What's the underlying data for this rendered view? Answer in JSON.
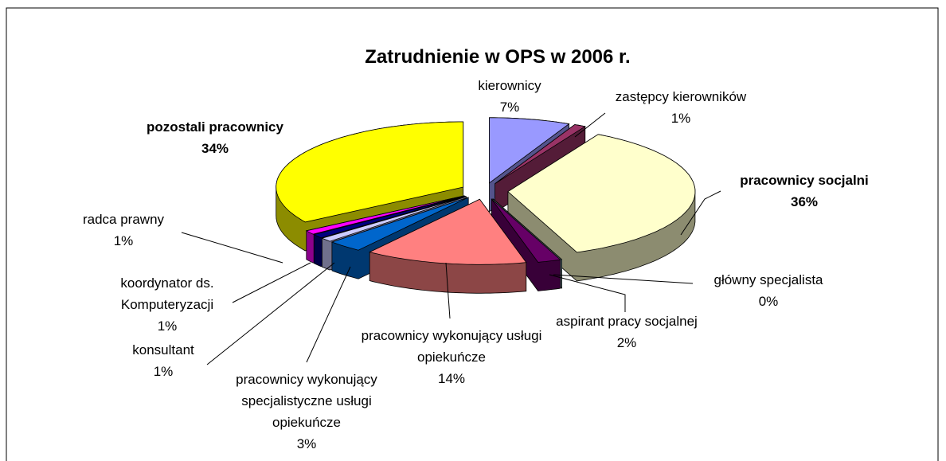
{
  "chart_data": {
    "type": "pie",
    "title": "Zatrudnienie w OPS w 2006 r.",
    "categories": [
      "kierownicy",
      "zastępcy kierowników",
      "pracownicy socjalni",
      "główny specjalista",
      "aspirant pracy socjalnej",
      "pracownicy wykonujący usługi opiekuńcze",
      "pracownicy wykonujący specjalistyczne usługi opiekuńcze",
      "konsultant",
      "koordynator ds. Komputeryzacji",
      "radca prawny",
      "pozostali pracownicy"
    ],
    "values": [
      7,
      1,
      36,
      0,
      2,
      14,
      3,
      1,
      1,
      1,
      34
    ],
    "value_labels": [
      "7%",
      "1%",
      "36%",
      "0%",
      "2%",
      "14%",
      "3%",
      "1%",
      "1%",
      "1%",
      "34%"
    ],
    "colors": [
      "#9999ff",
      "#993366",
      "#ffffcc",
      "#ccffff",
      "#660066",
      "#ff8080",
      "#0066cc",
      "#ccccff",
      "#000080",
      "#ff00ff",
      "#ffff00"
    ]
  }
}
